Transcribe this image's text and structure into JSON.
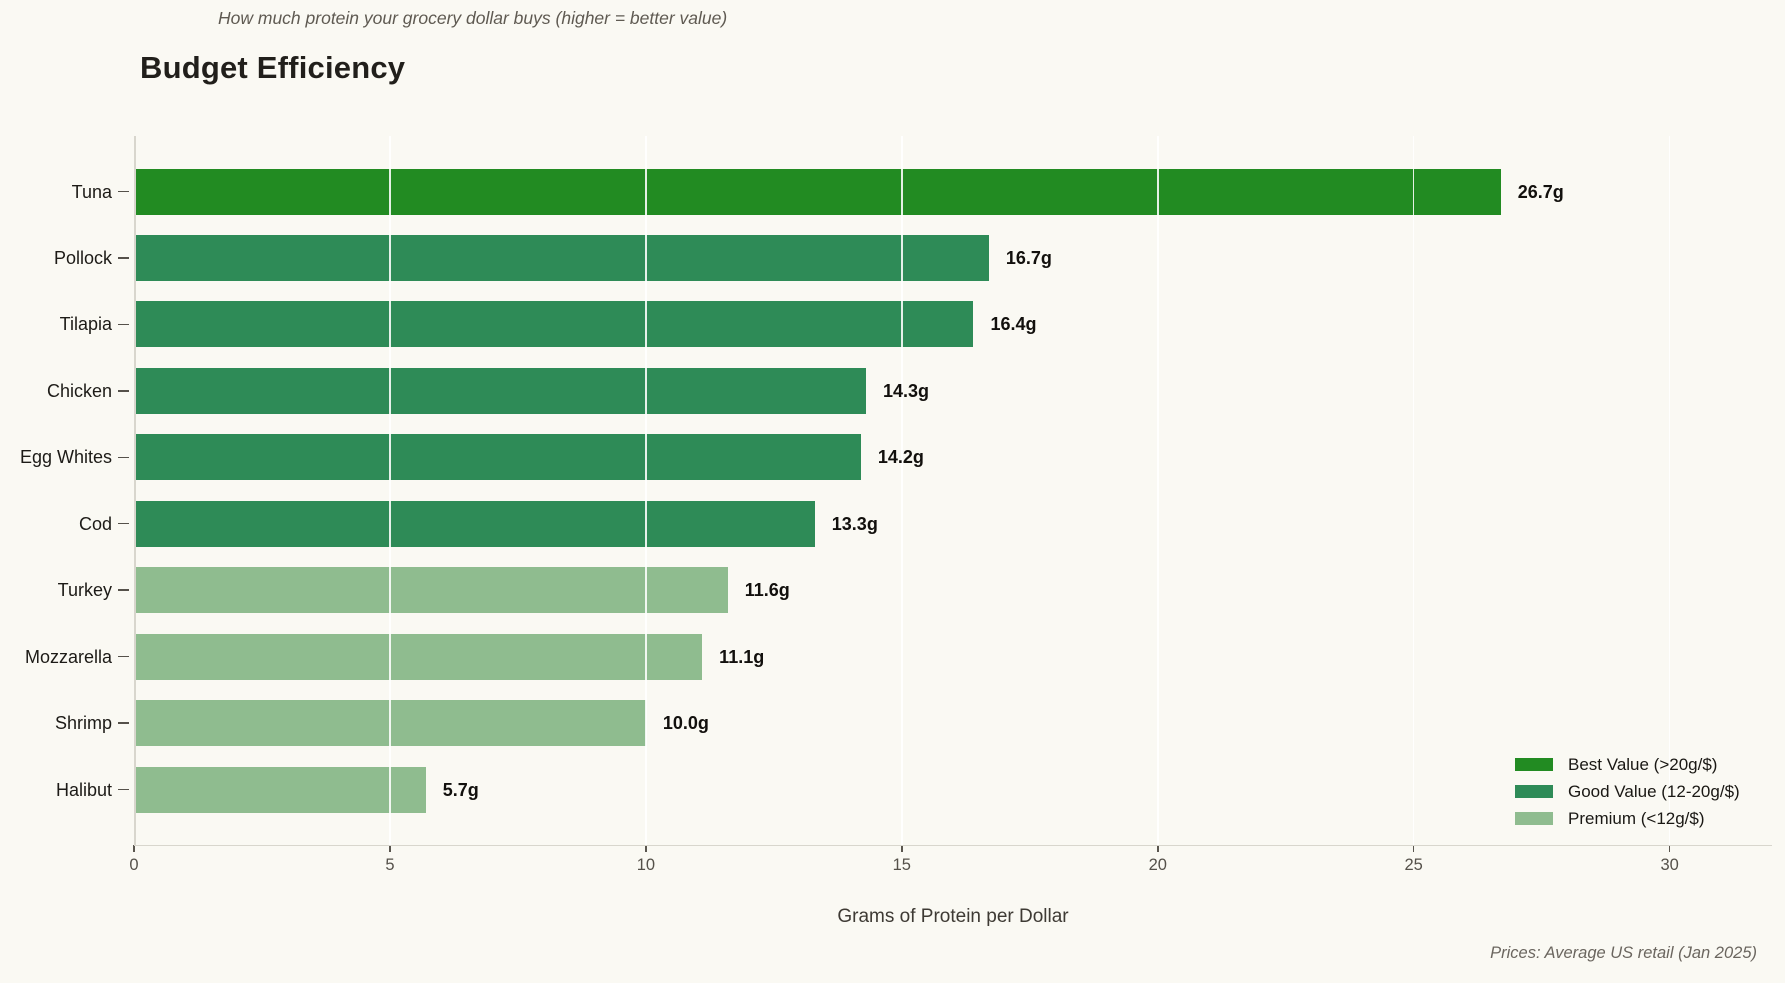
{
  "title": "Budget Efficiency",
  "subtitle": "How much protein your grocery dollar buys (higher = better value)",
  "footnote": "Prices: Average US retail (Jan 2025)",
  "colors": {
    "background": "#FAF9F3",
    "best": "#228B22",
    "good": "#2E8B57",
    "premium": "#8FBC8F"
  },
  "chart_data": {
    "type": "bar",
    "orientation": "horizontal",
    "title": "Budget Efficiency",
    "subtitle": "How much protein your grocery dollar buys (higher = better value)",
    "xlabel": "Grams of Protein per Dollar",
    "ylabel": "",
    "xlim": [
      0,
      32
    ],
    "xticks": [
      0,
      5,
      10,
      15,
      20,
      25,
      30
    ],
    "grid": true,
    "legend_position": "lower right",
    "categories": [
      "Tuna",
      "Pollock",
      "Tilapia",
      "Chicken",
      "Egg Whites",
      "Cod",
      "Turkey",
      "Mozzarella",
      "Shrimp",
      "Halibut"
    ],
    "values": [
      26.7,
      16.7,
      16.4,
      14.3,
      14.2,
      13.3,
      11.6,
      11.1,
      10.0,
      5.7
    ],
    "value_labels": [
      "26.7g",
      "16.7g",
      "16.4g",
      "14.3g",
      "14.2g",
      "13.3g",
      "11.6g",
      "11.1g",
      "10.0g",
      "5.7g"
    ],
    "bar_tiers": [
      "best",
      "good",
      "good",
      "good",
      "good",
      "good",
      "premium",
      "premium",
      "premium",
      "premium"
    ],
    "legend": [
      {
        "label": "Best Value (>20g/$)",
        "tier": "best"
      },
      {
        "label": "Good Value (12-20g/$)",
        "tier": "good"
      },
      {
        "label": "Premium (<12g/$)",
        "tier": "premium"
      }
    ],
    "annotations": [
      "Prices: Average US retail (Jan 2025)"
    ]
  }
}
